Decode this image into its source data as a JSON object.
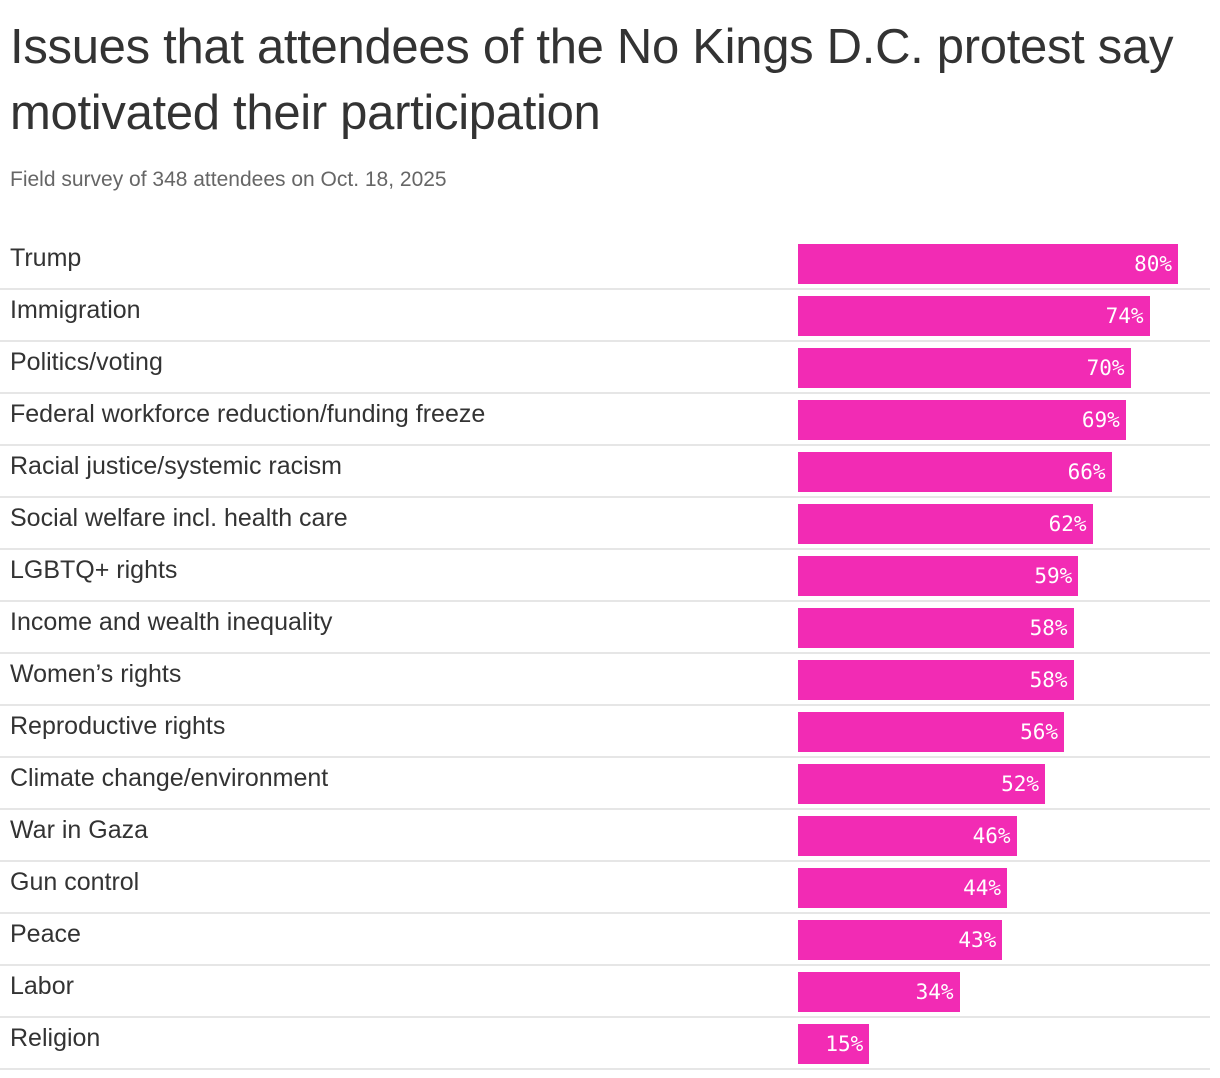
{
  "chart_data": {
    "type": "bar",
    "orientation": "horizontal",
    "title": "Issues that attendees of the No Kings D.C. protest say motivated their participation",
    "subtitle": "Field survey of 348 attendees on Oct. 18, 2025",
    "categories": [
      "Trump",
      "Immigration",
      "Politics/voting",
      "Federal workforce reduction/funding freeze",
      "Racial justice/systemic racism",
      "Social welfare incl. health care",
      "LGBTQ+ rights",
      "Income and wealth inequality",
      "Women’s rights",
      "Reproductive rights",
      "Climate change/environment",
      "War in Gaza",
      "Gun control",
      "Peace",
      "Labor",
      "Religion"
    ],
    "values": [
      80,
      74,
      70,
      69,
      66,
      62,
      59,
      58,
      58,
      56,
      52,
      46,
      44,
      43,
      34,
      15
    ],
    "value_labels": [
      "80%",
      "74%",
      "70%",
      "69%",
      "66%",
      "62%",
      "59%",
      "58%",
      "58%",
      "56%",
      "52%",
      "46%",
      "44%",
      "43%",
      "34%",
      "15%"
    ],
    "xlim": [
      0,
      100
    ],
    "grid": false,
    "bar_color": "#f22bb4"
  }
}
